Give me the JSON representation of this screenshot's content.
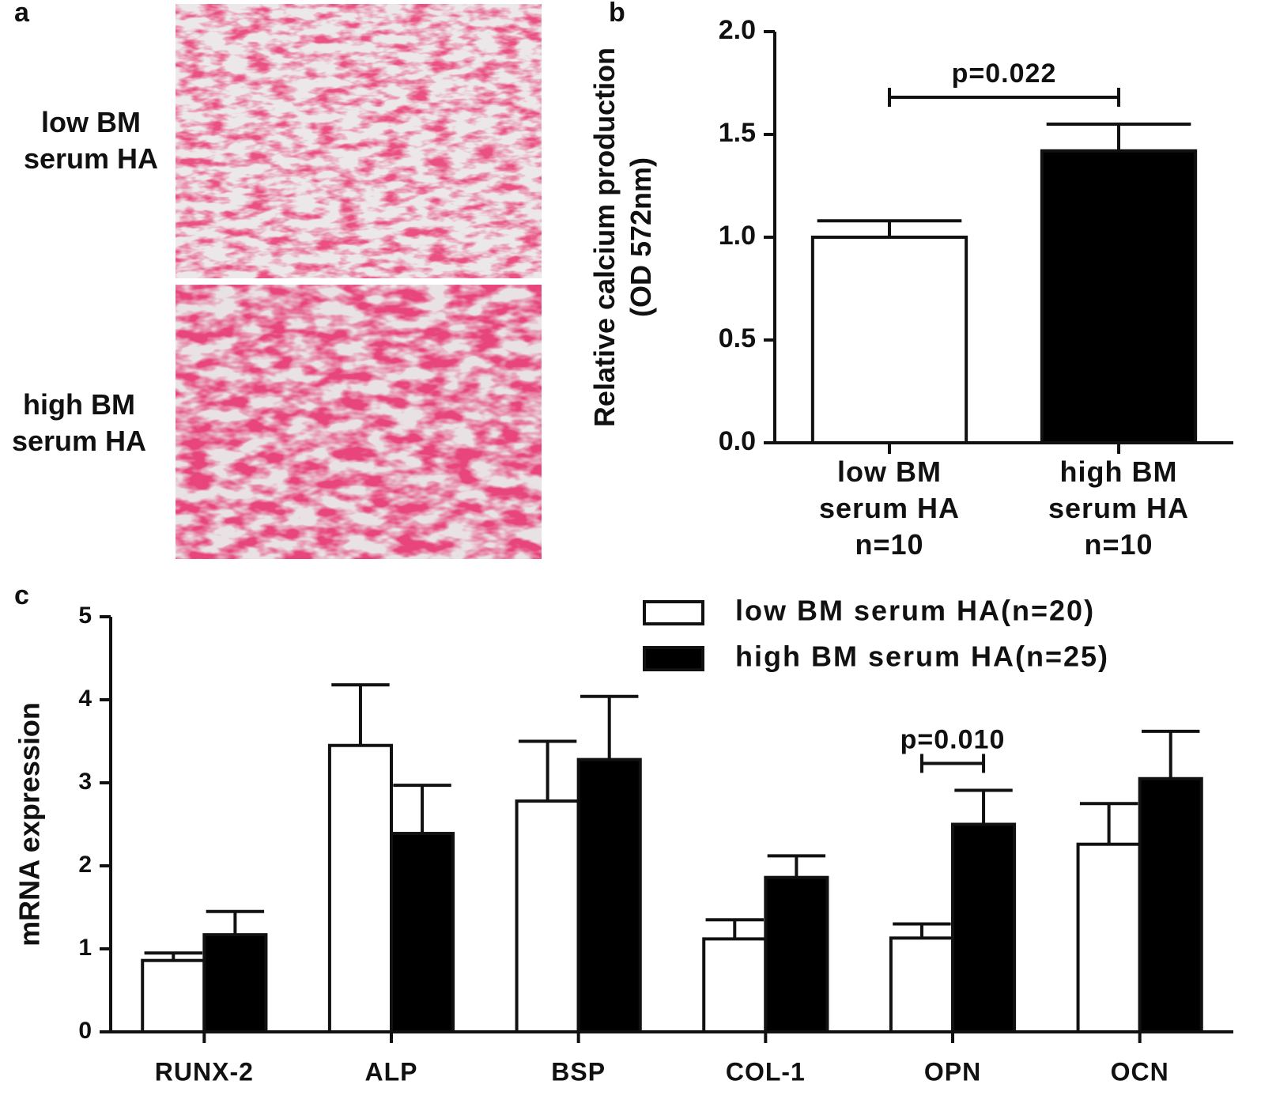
{
  "panel_a": {
    "label": "a",
    "rows": [
      "low BM\nserum HA",
      "high BM\nserum HA"
    ]
  },
  "chart_data": [
    {
      "type": "bar",
      "label": "b",
      "ylabel": "Relative calcium production\n(OD 572nm)",
      "categories": [
        "low BM\nserum HA\nn=10",
        "high BM\nserum HA\nn=10"
      ],
      "values": [
        1.0,
        1.42
      ],
      "errors": [
        0.08,
        0.13
      ],
      "colors": [
        "#ffffff",
        "#000000"
      ],
      "ylim": [
        0,
        2
      ],
      "yticks": [
        {
          "value": 0,
          "label": "0.0"
        },
        {
          "value": 0.5,
          "label": "0.5"
        },
        {
          "value": 1,
          "label": "1.0"
        },
        {
          "value": 1.5,
          "label": "1.5"
        },
        {
          "value": 2,
          "label": "2.0"
        }
      ],
      "annotation": {
        "text": "p=0.022"
      }
    },
    {
      "type": "bar",
      "label": "c",
      "ylabel": "mRNA expression",
      "categories": [
        "RUNX-2",
        "ALP",
        "BSP",
        "COL-1",
        "OPN",
        "OCN"
      ],
      "series": [
        {
          "name": "low BM serum HA(n=20)",
          "color": "#ffffff",
          "values": [
            0.86,
            3.45,
            2.78,
            1.12,
            1.13,
            2.26
          ],
          "errors": [
            0.09,
            0.73,
            0.72,
            0.23,
            0.17,
            0.49
          ]
        },
        {
          "name": "high BM serum HA(n=25)",
          "color": "#000000",
          "values": [
            1.17,
            2.39,
            3.28,
            1.86,
            2.5,
            3.05
          ],
          "errors": [
            0.28,
            0.58,
            0.76,
            0.26,
            0.41,
            0.57
          ]
        }
      ],
      "ylim": [
        0,
        5
      ],
      "yticks": [
        0,
        1,
        2,
        3,
        4,
        5
      ],
      "legend": "top-right",
      "annotation": {
        "text": "p=0.010",
        "category": "OPN"
      }
    }
  ]
}
